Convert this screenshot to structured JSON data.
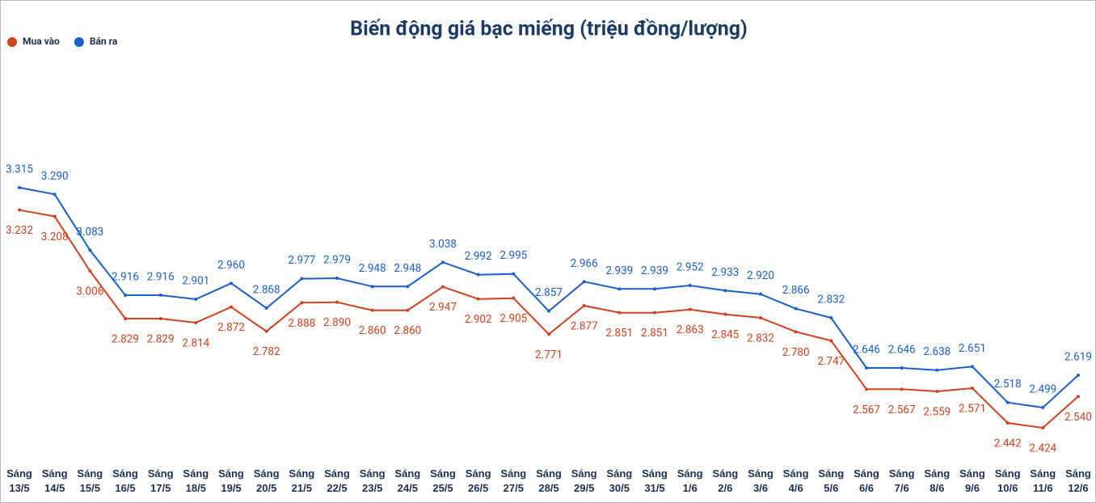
{
  "chart_data": {
    "type": "line",
    "title": "Biến động giá bạc miếng (triệu đồng/lượng)",
    "legend": "top-left",
    "categories": [
      "Sáng 13/5",
      "Sáng 14/5",
      "Sáng 15/5",
      "Sáng 16/5",
      "Sáng 17/5",
      "Sáng 18/5",
      "Sáng 19/5",
      "Sáng 20/5",
      "Sáng 21/5",
      "Sáng 22/5",
      "Sáng 23/5",
      "Sáng 24/5",
      "Sáng 25/5",
      "Sáng 26/5",
      "Sáng 27/5",
      "Sáng 28/5",
      "Sáng 29/5",
      "Sáng 30/5",
      "Sáng 31/5",
      "Sáng 1/6",
      "Sáng 2/6",
      "Sáng 3/6",
      "Sáng 4/6",
      "Sáng 5/6",
      "Sáng 6/6",
      "Sáng 7/6",
      "Sáng 8/6",
      "Sáng 9/6",
      "Sáng 10/6",
      "Sáng 11/6",
      "Sáng 12/6"
    ],
    "series": [
      {
        "name": "Mua vào",
        "color": "#d2401c",
        "values": [
          3.232,
          3.208,
          3.006,
          2.829,
          2.829,
          2.814,
          2.872,
          2.782,
          2.888,
          2.89,
          2.86,
          2.86,
          2.947,
          2.902,
          2.905,
          2.771,
          2.877,
          2.851,
          2.851,
          2.863,
          2.845,
          2.832,
          2.78,
          2.747,
          2.567,
          2.567,
          2.559,
          2.571,
          2.442,
          2.424,
          2.54
        ],
        "value_labels": [
          "3.232",
          "3.208",
          "3.006",
          "2.829",
          "2.829",
          "2.814",
          "2.872",
          "2.782",
          "2.888",
          "2.890",
          "2.860",
          "2.860",
          "2.947",
          "2.902",
          "2.905",
          "2.771",
          "2.877",
          "2.851",
          "2.851",
          "2.863",
          "2.845",
          "2.832",
          "2.780",
          "2.747",
          "2.567",
          "2.567",
          "2.559",
          "2.571",
          "2.442",
          "2.424",
          "2.540"
        ]
      },
      {
        "name": "Bán ra",
        "color": "#1a5fcf",
        "values": [
          3.315,
          3.29,
          3.083,
          2.916,
          2.916,
          2.901,
          2.96,
          2.868,
          2.977,
          2.979,
          2.948,
          2.948,
          3.038,
          2.992,
          2.995,
          2.857,
          2.966,
          2.939,
          2.939,
          2.952,
          2.933,
          2.92,
          2.866,
          2.832,
          2.646,
          2.646,
          2.638,
          2.651,
          2.518,
          2.499,
          2.619
        ],
        "value_labels": [
          "3.315",
          "3.290",
          "3.083",
          "2.916",
          "2.916",
          "2.901",
          "2.960",
          "2.868",
          "2.977",
          "2.979",
          "2.948",
          "2.948",
          "3.038",
          "2.992",
          "2.995",
          "2.857",
          "2.966",
          "2.939",
          "2.939",
          "2.952",
          "2.933",
          "2.920",
          "2.866",
          "2.832",
          "2.646",
          "2.646",
          "2.638",
          "2.651",
          "2.518",
          "2.499",
          "2.619"
        ]
      }
    ]
  }
}
